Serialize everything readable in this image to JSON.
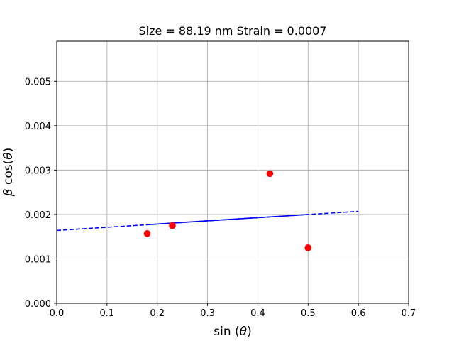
{
  "chart_data": {
    "type": "scatter",
    "title": "Size = 88.19 nm  Strain = 0.0007",
    "xlabel_text": "sin (",
    "xlabel_symbol": "θ",
    "xlabel_end": ")",
    "ylabel_symbol": "β",
    "ylabel_text": " cos(",
    "ylabel_symbol2": "θ",
    "ylabel_end": ")",
    "xlim": [
      0.0,
      0.7
    ],
    "ylim": [
      0.0,
      0.0059
    ],
    "x_ticks": [
      0.0,
      0.1,
      0.2,
      0.3,
      0.4,
      0.5,
      0.6,
      0.7
    ],
    "x_tick_labels": [
      "0.0",
      "0.1",
      "0.2",
      "0.3",
      "0.4",
      "0.5",
      "0.6",
      "0.7"
    ],
    "y_ticks": [
      0.0,
      0.001,
      0.002,
      0.003,
      0.004,
      0.005
    ],
    "y_tick_labels": [
      "0.000",
      "0.001",
      "0.002",
      "0.003",
      "0.004",
      "0.005"
    ],
    "grid": true,
    "points": {
      "x": [
        0.18,
        0.23,
        0.424,
        0.5
      ],
      "y": [
        0.00157,
        0.00175,
        0.00292,
        0.00125
      ],
      "color": "#ff0000"
    },
    "fit_solid": {
      "x": [
        0.18,
        0.5
      ],
      "y": [
        0.00177,
        0.002
      ],
      "color": "#0000ff"
    },
    "fit_dashed": {
      "x": [
        0.0,
        0.6
      ],
      "y": [
        0.00164,
        0.00207
      ],
      "color": "#0000ff"
    }
  }
}
